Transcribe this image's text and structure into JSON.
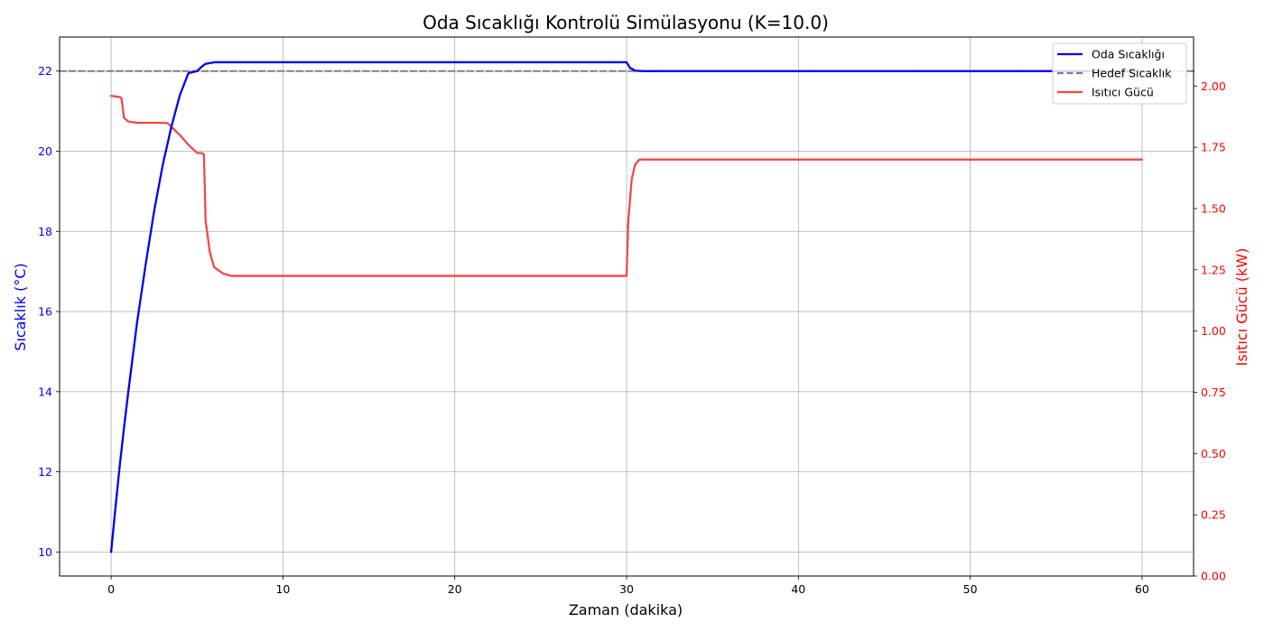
{
  "chart_data": {
    "type": "line",
    "title": "Oda Sıcaklığı Kontrolü Simülasyonu (K=10.0)",
    "xlabel": "Zaman (dakika)",
    "ylabel": "Sıcaklık (°C)",
    "ylabel_right": "Isıtıcı Gücü (kW)",
    "xlim": [
      -3,
      63
    ],
    "ylim": [
      9.4,
      22.85
    ],
    "ylim_right": [
      0,
      2.2
    ],
    "x_ticks": [
      0,
      10,
      20,
      30,
      40,
      50,
      60
    ],
    "y_ticks": [
      10,
      12,
      14,
      16,
      18,
      20,
      22
    ],
    "y_ticks_right": [
      "0.00",
      "0.25",
      "0.50",
      "0.75",
      "1.00",
      "1.25",
      "1.50",
      "1.75",
      "2.00"
    ],
    "grid": true,
    "legend_position": "top-right",
    "series": [
      {
        "name": "Oda Sıcaklığı",
        "axis": "left",
        "color": "#0000ee",
        "style": "solid",
        "x": [
          0,
          0.25,
          0.5,
          0.75,
          1,
          1.5,
          2,
          2.5,
          3,
          3.5,
          4,
          4.5,
          5,
          5.3,
          5.5,
          6,
          7,
          10,
          20,
          30,
          30.2,
          30.5,
          31,
          40,
          50,
          60
        ],
        "y": [
          10,
          11.1,
          12.15,
          13.1,
          14,
          15.7,
          17.15,
          18.5,
          19.65,
          20.6,
          21.4,
          21.95,
          22.0,
          22.12,
          22.18,
          22.22,
          22.22,
          22.22,
          22.22,
          22.22,
          22.08,
          22.01,
          22.0,
          22.0,
          22.0,
          22.0
        ]
      },
      {
        "name": "Hedef Sıcaklık",
        "axis": "left",
        "color": "#808080",
        "style": "dashed",
        "x": [
          -3,
          63
        ],
        "y": [
          22,
          22
        ]
      },
      {
        "name": "Isıtıcı Gücü",
        "axis": "right",
        "color": "#f04848",
        "style": "solid",
        "x": [
          0,
          0.5,
          0.6,
          0.75,
          1,
          1.5,
          2,
          3,
          3.3,
          4,
          4.5,
          5,
          5.3,
          5.4,
          5.5,
          5.75,
          6,
          6.5,
          7,
          8,
          30,
          30.1,
          30.3,
          30.5,
          30.75,
          31,
          40,
          50,
          60
        ],
        "y": [
          1.96,
          1.955,
          1.95,
          1.87,
          1.855,
          1.85,
          1.85,
          1.85,
          1.848,
          1.8,
          1.76,
          1.727,
          1.726,
          1.72,
          1.45,
          1.32,
          1.26,
          1.235,
          1.225,
          1.225,
          1.225,
          1.45,
          1.62,
          1.68,
          1.7,
          1.7,
          1.7,
          1.7,
          1.7
        ]
      }
    ]
  }
}
